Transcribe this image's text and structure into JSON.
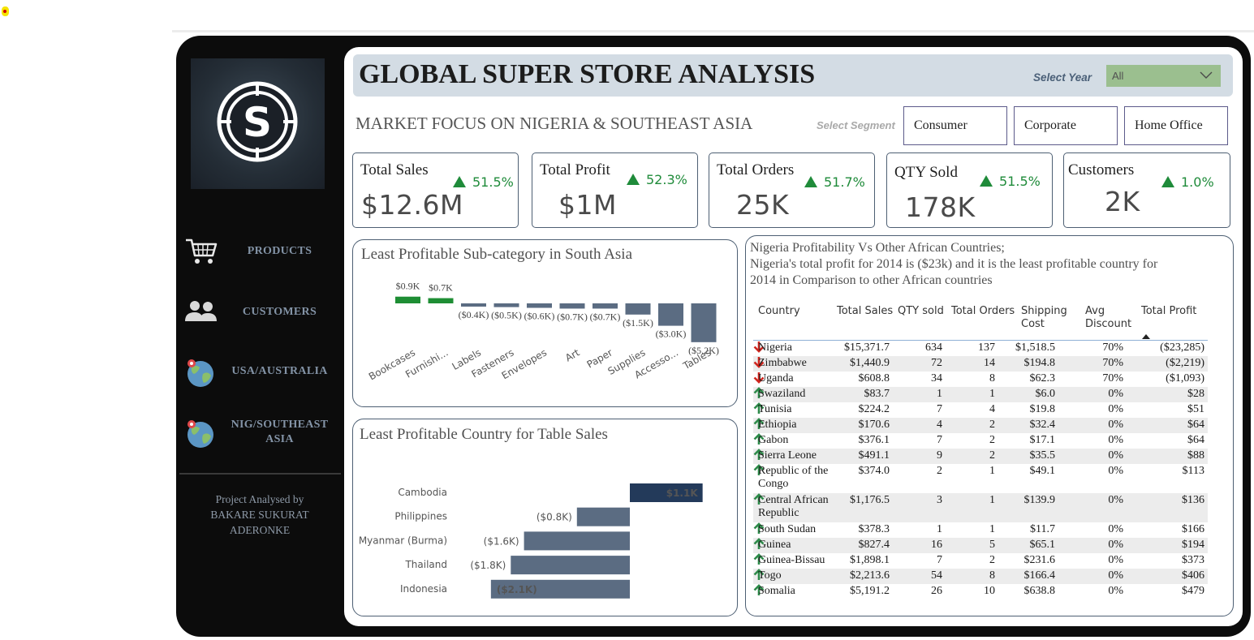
{
  "sidebar": {
    "nav": [
      {
        "label": "PRODUCTS",
        "icon": "shopping-cart-icon"
      },
      {
        "label": "CUSTOMERS",
        "icon": "users-icon"
      },
      {
        "label": "USA/AUSTRALIA",
        "icon": "globe-pin-icon"
      },
      {
        "label": "NIG/SOUTHEAST ASIA",
        "icon": "globe-pin-icon"
      }
    ],
    "credit_line1": "Project Analysed by",
    "credit_line2": "BAKARE SUKURAT",
    "credit_line3": "ADERONKE"
  },
  "header": {
    "title": "GLOBAL SUPER STORE ANALYSIS",
    "year_label": "Select Year",
    "year_value": "All"
  },
  "subheader": {
    "subtitle": "MARKET FOCUS ON NIGERIA & SOUTHEAST ASIA",
    "segment_label": "Select Segment",
    "segments": [
      "Consumer",
      "Corporate",
      "Home Office"
    ]
  },
  "kpis": [
    {
      "label": "Total Sales",
      "value": "$12.6M",
      "delta": "51.5%"
    },
    {
      "label": "Total Profit",
      "value": "$1M",
      "delta": "52.3%"
    },
    {
      "label": "Total Orders",
      "value": "25K",
      "delta": "51.7%"
    },
    {
      "label": "QTY Sold",
      "value": "178K",
      "delta": "51.5%"
    },
    {
      "label": "Customers",
      "value": "2K",
      "delta": "1.0%"
    }
  ],
  "colors": {
    "positive": "#1e8e34",
    "negative": "#5b6c82",
    "navy": "#233a5a",
    "up_arrow": "#2e8b4a",
    "down_arrow": "#d0261f"
  },
  "chart_data": [
    {
      "type": "bar",
      "title": "Least Profitable Sub-category in South Asia",
      "categories": [
        "Bookcases",
        "Furnishi...",
        "Labels",
        "Fasteners",
        "Envelopes",
        "Art",
        "Paper",
        "Supplies",
        "Accesso...",
        "Tables"
      ],
      "values": [
        0.9,
        0.7,
        -0.4,
        -0.5,
        -0.6,
        -0.7,
        -0.7,
        -1.5,
        -3.0,
        -5.2
      ],
      "data_labels": [
        "$0.9K",
        "$0.7K",
        "($0.4K)",
        "($0.5K)",
        "($0.6K)",
        "($0.7K)",
        "($0.7K)",
        "($1.5K)",
        "($3.0K)",
        "($5.2K)"
      ]
    },
    {
      "type": "bar",
      "title": "Least Profitable Country for Table Sales",
      "categories": [
        "Cambodia",
        "Philippines",
        "Myanmar (Burma)",
        "Thailand",
        "Indonesia"
      ],
      "values": [
        1.1,
        -0.8,
        -1.6,
        -1.8,
        -2.1
      ],
      "data_labels": [
        "$1.1K",
        "($0.8K)",
        "($1.6K)",
        "($1.8K)",
        "($2.1K)"
      ]
    }
  ],
  "nigeria_table": {
    "note_line1": "Nigeria Profitability Vs Other African Countries;",
    "note_line2": "Nigeria's total profit for 2014 is ($23k) and it is the least profitable country for",
    "note_line3": "2014 in Comparison to other African countries",
    "headers": {
      "country": "Country",
      "sales": "Total Sales",
      "qty": "QTY sold",
      "orders": "Total Orders",
      "ship1": "Shipping",
      "ship2": "Cost",
      "disc1": "Avg",
      "disc2": "Discount",
      "profit": "Total Profit"
    },
    "rows": [
      {
        "country": "Nigeria",
        "sales": "$15,371.7",
        "qty": "634",
        "orders": "137",
        "ship": "$1,518.5",
        "disc": "70%",
        "dir": "down",
        "profit": "($23,285)"
      },
      {
        "country": "Zimbabwe",
        "sales": "$1,440.9",
        "qty": "72",
        "orders": "14",
        "ship": "$194.8",
        "disc": "70%",
        "dir": "down",
        "profit": "($2,219)"
      },
      {
        "country": "Uganda",
        "sales": "$608.8",
        "qty": "34",
        "orders": "8",
        "ship": "$62.3",
        "disc": "70%",
        "dir": "down",
        "profit": "($1,093)"
      },
      {
        "country": "Swaziland",
        "sales": "$83.7",
        "qty": "1",
        "orders": "1",
        "ship": "$6.0",
        "disc": "0%",
        "dir": "up",
        "profit": "$28"
      },
      {
        "country": "Tunisia",
        "sales": "$224.2",
        "qty": "7",
        "orders": "4",
        "ship": "$19.8",
        "disc": "0%",
        "dir": "up",
        "profit": "$51"
      },
      {
        "country": "Ethiopia",
        "sales": "$170.6",
        "qty": "4",
        "orders": "2",
        "ship": "$32.4",
        "disc": "0%",
        "dir": "up",
        "profit": "$64"
      },
      {
        "country": "Gabon",
        "sales": "$376.1",
        "qty": "7",
        "orders": "2",
        "ship": "$17.1",
        "disc": "0%",
        "dir": "up",
        "profit": "$64"
      },
      {
        "country": "Sierra Leone",
        "sales": "$491.1",
        "qty": "9",
        "orders": "2",
        "ship": "$35.5",
        "disc": "0%",
        "dir": "up",
        "profit": "$88"
      },
      {
        "country": "Republic of the Congo",
        "sales": "$374.0",
        "qty": "2",
        "orders": "1",
        "ship": "$49.1",
        "disc": "0%",
        "dir": "up",
        "profit": "$113"
      },
      {
        "country": "Central African Republic",
        "sales": "$1,176.5",
        "qty": "3",
        "orders": "1",
        "ship": "$139.9",
        "disc": "0%",
        "dir": "up",
        "profit": "$136"
      },
      {
        "country": "South Sudan",
        "sales": "$378.3",
        "qty": "1",
        "orders": "1",
        "ship": "$11.7",
        "disc": "0%",
        "dir": "up",
        "profit": "$166"
      },
      {
        "country": "Guinea",
        "sales": "$827.4",
        "qty": "16",
        "orders": "5",
        "ship": "$65.1",
        "disc": "0%",
        "dir": "up",
        "profit": "$194"
      },
      {
        "country": "Guinea-Bissau",
        "sales": "$1,898.1",
        "qty": "7",
        "orders": "2",
        "ship": "$231.6",
        "disc": "0%",
        "dir": "up",
        "profit": "$373"
      },
      {
        "country": "Togo",
        "sales": "$2,213.6",
        "qty": "54",
        "orders": "8",
        "ship": "$166.4",
        "disc": "0%",
        "dir": "up",
        "profit": "$406"
      },
      {
        "country": "Somalia",
        "sales": "$5,191.2",
        "qty": "26",
        "orders": "10",
        "ship": "$638.8",
        "disc": "0%",
        "dir": "up",
        "profit": "$479"
      }
    ]
  }
}
